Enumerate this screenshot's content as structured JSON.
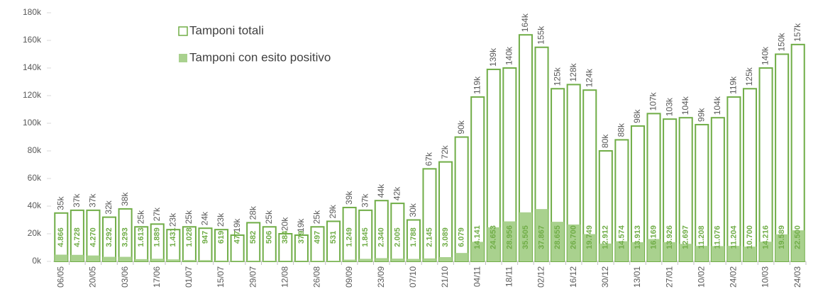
{
  "chart_data": {
    "type": "bar",
    "categories": [
      "06/05",
      null,
      "20/05",
      null,
      "03/06",
      null,
      "17/06",
      null,
      "01/07",
      null,
      "15/07",
      null,
      "29/07",
      null,
      "12/08",
      null,
      "26/08",
      null,
      "09/09",
      null,
      "23/09",
      null,
      "07/10",
      null,
      "21/10",
      null,
      "04/11",
      null,
      "18/11",
      null,
      "02/12",
      null,
      "16/12",
      null,
      "30/12",
      null,
      "13/01",
      null,
      "27/01",
      null,
      "10/02",
      null,
      "24/02",
      null,
      "10/03",
      null,
      "24/03"
    ],
    "series": [
      {
        "name": "Tamponi totali",
        "color": "#70ad47",
        "values": [
          35000,
          37000,
          37000,
          32000,
          38000,
          25000,
          27000,
          23000,
          25000,
          24000,
          23000,
          19000,
          28000,
          25000,
          20000,
          19000,
          25000,
          29000,
          39000,
          37000,
          44000,
          42000,
          30000,
          67000,
          72000,
          90000,
          119000,
          139000,
          140000,
          164000,
          155000,
          125000,
          128000,
          124000,
          80000,
          88000,
          98000,
          107000,
          103000,
          104000,
          99000,
          104000,
          119000,
          125000,
          140000,
          150000,
          157000
        ],
        "value_labels": [
          "35k",
          "37k",
          "37k",
          "32k",
          "38k",
          "25k",
          "27k",
          "23k",
          "25k",
          "24k",
          "23k",
          "19k",
          "28k",
          "25k",
          "20k",
          "19k",
          "25k",
          "29k",
          "39k",
          "37k",
          "44k",
          "42k",
          "30k",
          "67k",
          "72k",
          "90k",
          "119k",
          "139k",
          "140k",
          "164k",
          "155k",
          "125k",
          "128k",
          "124k",
          "80k",
          "88k",
          "98k",
          "107k",
          "103k",
          "104k",
          "99k",
          "104k",
          "119k",
          "125k",
          "140k",
          "150k",
          "157k"
        ]
      },
      {
        "name": "Tamponi con esito positivo",
        "color": "#a9d18e",
        "values": [
          4866,
          4728,
          4270,
          3292,
          3293,
          1613,
          1889,
          1431,
          1028,
          947,
          619,
          477,
          582,
          506,
          384,
          379,
          497,
          531,
          1249,
          1845,
          2340,
          2005,
          1788,
          2145,
          3089,
          6079,
          14141,
          24653,
          28956,
          35505,
          37867,
          28655,
          26700,
          19749,
          12912,
          14574,
          13913,
          16169,
          13926,
          12697,
          11208,
          11076,
          11204,
          10700,
          14216,
          19589,
          22500
        ],
        "value_labels": [
          "4.866",
          "4.728",
          "4.270",
          "3.292",
          "3.293",
          "1.613",
          "1.889",
          "1.431",
          "1.028",
          "947",
          "619",
          "477",
          "582",
          "506",
          "384",
          "379",
          "497",
          "531",
          "1.249",
          "1.845",
          "2.340",
          "2.005",
          "1.788",
          "2.145",
          "3.089",
          "6.079",
          "14.141",
          "24.653",
          "28.956",
          "35.505",
          "37.867",
          "28.655",
          "26.700",
          "19.749",
          "12.912",
          "14.574",
          "13.913",
          "16.169",
          "13.926",
          "12.697",
          "11.208",
          "11.076",
          "11.204",
          "10.700",
          "14.216",
          "19.589",
          "22.500"
        ]
      }
    ],
    "ylim": [
      0,
      180000
    ],
    "yticks": [
      {
        "value": 0,
        "label": "0k"
      },
      {
        "value": 20000,
        "label": "20k"
      },
      {
        "value": 40000,
        "label": "40k"
      },
      {
        "value": 60000,
        "label": "60k"
      },
      {
        "value": 80000,
        "label": "80k"
      },
      {
        "value": 100000,
        "label": "100k"
      },
      {
        "value": 120000,
        "label": "120k"
      },
      {
        "value": 140000,
        "label": "140k"
      },
      {
        "value": 160000,
        "label": "160k"
      },
      {
        "value": 180000,
        "label": "180k"
      }
    ]
  }
}
